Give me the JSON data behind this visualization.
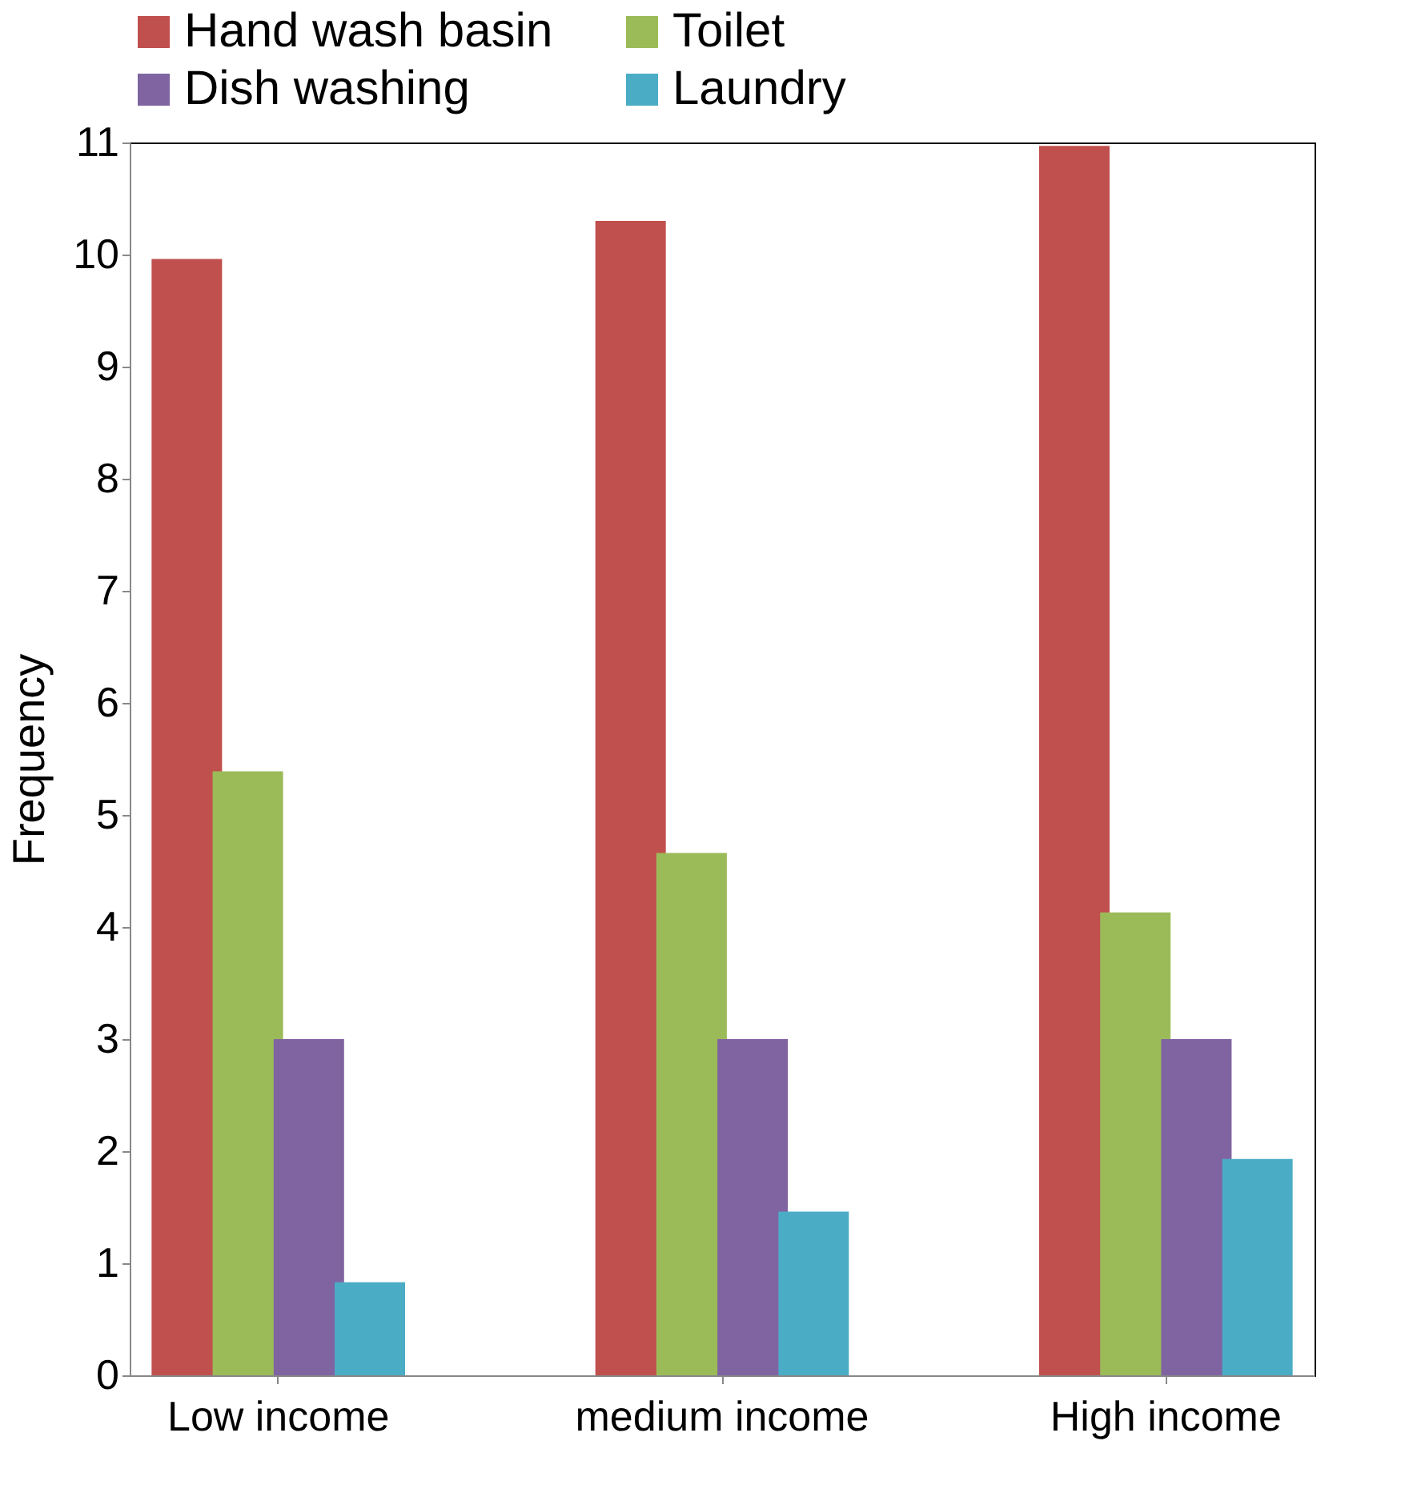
{
  "chart_data": {
    "type": "bar",
    "ylabel": "Frequency",
    "categories": [
      "Low income",
      "medium income",
      "High income"
    ],
    "series": [
      {
        "name": "Hand wash basin",
        "color": "#c0504d",
        "values": [
          9.96,
          10.3,
          10.97
        ]
      },
      {
        "name": "Toilet",
        "color": "#9bbb59",
        "values": [
          5.39,
          4.66,
          4.13
        ]
      },
      {
        "name": "Dish washing",
        "color": "#8064a2",
        "values": [
          3.0,
          3.0,
          3.0
        ]
      },
      {
        "name": "Laundry",
        "color": "#4bacc6",
        "values": [
          0.83,
          1.46,
          1.93
        ]
      }
    ],
    "ylim": [
      0,
      11
    ],
    "yticks": [
      0,
      1,
      2,
      3,
      4,
      5,
      6,
      7,
      8,
      9,
      10,
      11
    ],
    "grid": false,
    "legend": "top"
  }
}
